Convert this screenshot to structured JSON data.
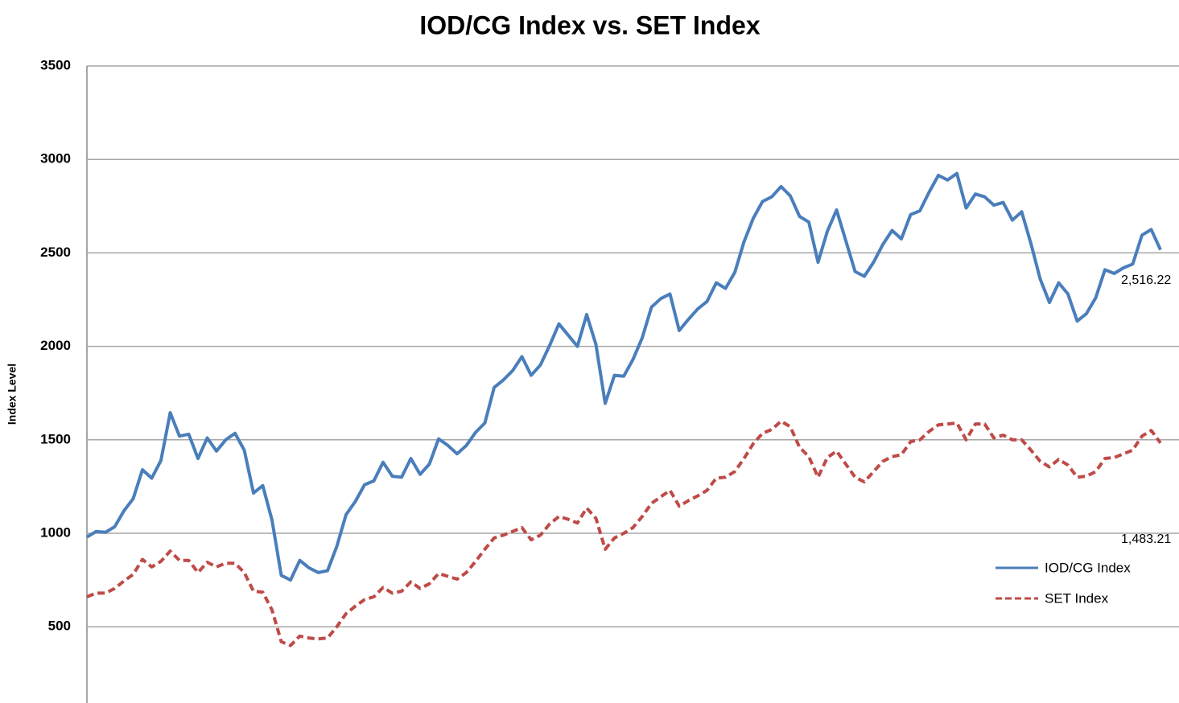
{
  "chart_data": {
    "type": "line",
    "title": "IOD/CG Index vs. SET Index",
    "y_label": "Index Level",
    "ylim": [
      90,
      3500
    ],
    "yticks": [
      500,
      1000,
      1500,
      2000,
      2500,
      3000,
      3500
    ],
    "grid": true,
    "legend": "lower right",
    "series": [
      {
        "name": "IOD/CG Index",
        "color": "#4a7ebb",
        "values": [
          980,
          1010,
          1005,
          1035,
          1120,
          1185,
          1340,
          1295,
          1390,
          1645,
          1520,
          1530,
          1400,
          1510,
          1440,
          1500,
          1535,
          1445,
          1215,
          1255,
          1070,
          775,
          750,
          855,
          815,
          790,
          800,
          930,
          1100,
          1170,
          1260,
          1280,
          1380,
          1305,
          1300,
          1400,
          1315,
          1370,
          1505,
          1470,
          1425,
          1470,
          1540,
          1590,
          1780,
          1820,
          1870,
          1945,
          1845,
          1900,
          2005,
          2120,
          2060,
          2000,
          2170,
          2010,
          1695,
          1845,
          1840,
          1930,
          2045,
          2210,
          2255,
          2280,
          2085,
          2145,
          2200,
          2240,
          2340,
          2310,
          2395,
          2560,
          2685,
          2775,
          2800,
          2855,
          2805,
          2695,
          2665,
          2450,
          2615,
          2730,
          2565,
          2400,
          2375,
          2450,
          2545,
          2620,
          2575,
          2705,
          2725,
          2825,
          2915,
          2890,
          2925,
          2740,
          2815,
          2800,
          2755,
          2770,
          2675,
          2720,
          2550,
          2360,
          2235,
          2340,
          2280,
          2135,
          2175,
          2260,
          2410,
          2390,
          2420,
          2440,
          2595,
          2625,
          2516.22
        ]
      },
      {
        "name": "SET Index",
        "color": "#be4b48",
        "dashed": true,
        "values": [
          660,
          680,
          680,
          705,
          745,
          780,
          860,
          820,
          850,
          905,
          855,
          855,
          790,
          845,
          820,
          840,
          840,
          790,
          690,
          685,
          590,
          420,
          400,
          450,
          440,
          435,
          440,
          500,
          570,
          610,
          645,
          660,
          710,
          680,
          690,
          740,
          705,
          730,
          785,
          770,
          755,
          790,
          850,
          915,
          975,
          990,
          1010,
          1030,
          965,
          990,
          1050,
          1090,
          1075,
          1055,
          1135,
          1080,
          915,
          975,
          1000,
          1030,
          1090,
          1160,
          1195,
          1230,
          1145,
          1175,
          1200,
          1230,
          1295,
          1300,
          1330,
          1400,
          1480,
          1535,
          1555,
          1600,
          1570,
          1460,
          1410,
          1300,
          1405,
          1440,
          1370,
          1300,
          1275,
          1330,
          1385,
          1410,
          1420,
          1490,
          1500,
          1545,
          1580,
          1585,
          1590,
          1500,
          1585,
          1585,
          1510,
          1525,
          1500,
          1500,
          1445,
          1385,
          1355,
          1395,
          1365,
          1300,
          1305,
          1330,
          1400,
          1405,
          1425,
          1445,
          1520,
          1550,
          1483.21
        ]
      }
    ],
    "annotations": [
      {
        "text": "2,516.22",
        "value": 2516.22
      },
      {
        "text": "1,483.21",
        "value": 1483.21
      }
    ]
  }
}
